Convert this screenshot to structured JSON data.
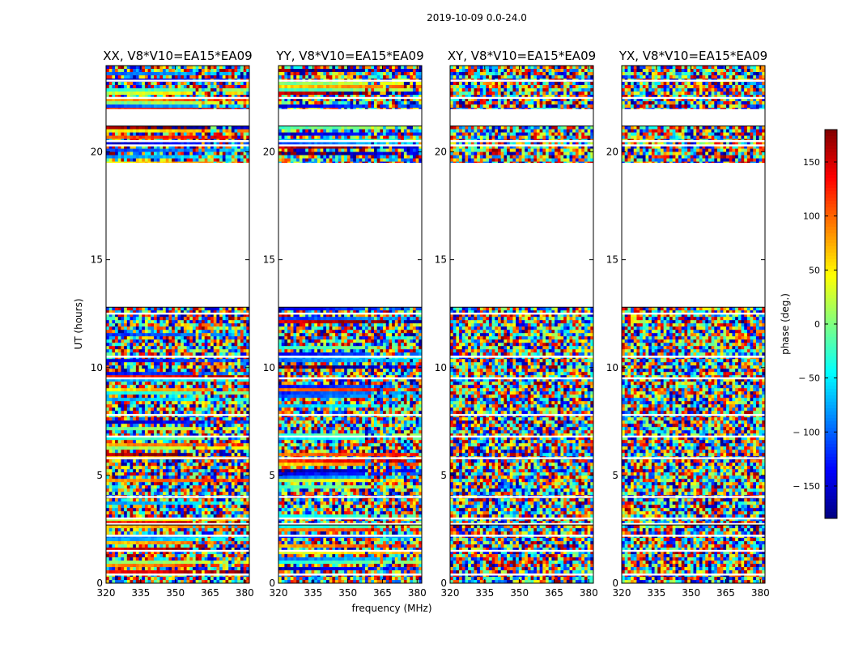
{
  "chart_data": {
    "type": "heatmap",
    "suptitle": "2019-10-09 0.0-24.0",
    "panels": [
      {
        "title": "XX, V8*V10=EA15*EA09",
        "pol": "XX",
        "phase_pattern": "coherent"
      },
      {
        "title": "YY, V8*V10=EA15*EA09",
        "pol": "YY",
        "phase_pattern": "coherent"
      },
      {
        "title": "XY, V8*V10=EA15*EA09",
        "pol": "XY",
        "phase_pattern": "noise"
      },
      {
        "title": "YX, V8*V10=EA15*EA09",
        "pol": "YX",
        "phase_pattern": "noise"
      }
    ],
    "xlabel": "frequency (MHz)",
    "ylabel": "UT (hours)",
    "xlim": [
      320,
      382
    ],
    "ylim": [
      0,
      24
    ],
    "xticks": [
      320,
      335,
      350,
      365,
      380
    ],
    "yticks": [
      0,
      5,
      10,
      15,
      20
    ],
    "colorbar": {
      "label": "phase (deg.)",
      "range": [
        -180,
        180
      ],
      "ticks": [
        150,
        100,
        50,
        0,
        -50,
        -100,
        -150
      ],
      "tick_labels": [
        "150",
        "100",
        "50",
        "0",
        "− 50",
        "− 100",
        "− 150"
      ],
      "colormap": "jet"
    },
    "data_blocks_hours": [
      [
        0.0,
        2.7
      ],
      [
        2.8,
        12.8
      ],
      [
        19.5,
        21.2
      ],
      [
        22.0,
        24.0
      ]
    ],
    "flag_lines_hours": [
      0.4,
      1.5,
      2.2,
      3.0,
      4.0,
      5.8,
      6.8,
      7.8,
      9.5,
      10.5,
      12.5,
      20.3,
      20.5,
      22.5,
      23.3
    ]
  }
}
